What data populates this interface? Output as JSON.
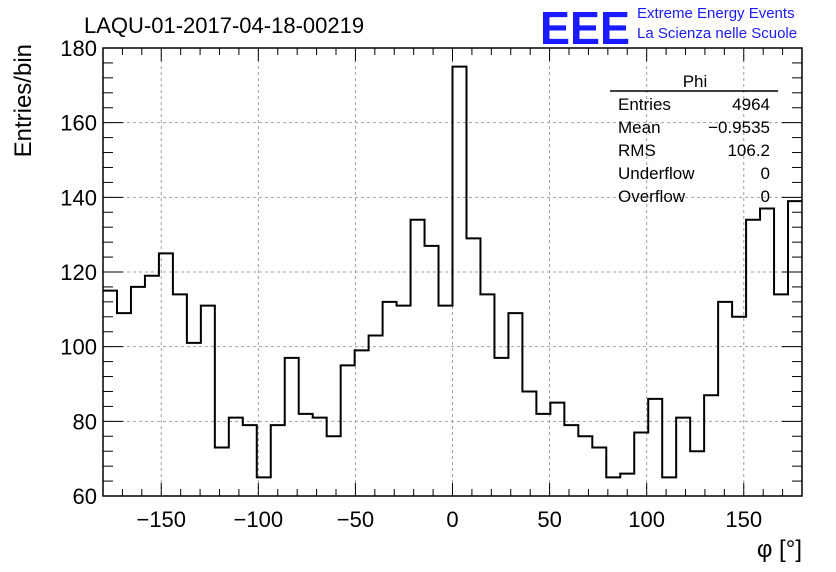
{
  "chart_data": {
    "type": "bar",
    "title": "LAQU-01-2017-04-18-00219",
    "xlabel": "φ [°]",
    "ylabel": "Entries/bin",
    "xlim": [
      -180,
      180
    ],
    "ylim": [
      60,
      180
    ],
    "bin_width": 7.2,
    "grid": true,
    "xticks": [
      -150,
      -100,
      -50,
      0,
      50,
      100,
      150
    ],
    "yticks": [
      60,
      80,
      100,
      120,
      140,
      160,
      180
    ],
    "values": [
      115,
      109,
      116,
      119,
      125,
      114,
      101,
      111,
      73,
      81,
      79,
      65,
      79,
      97,
      82,
      81,
      76,
      95,
      99,
      103,
      112,
      111,
      134,
      127,
      111,
      175,
      129,
      114,
      97,
      109,
      88,
      82,
      85,
      79,
      76,
      73,
      65,
      66,
      77,
      86,
      65,
      81,
      72,
      87,
      112,
      108,
      134,
      137,
      114,
      139
    ],
    "stats_box": {
      "name": "Phi",
      "rows": [
        {
          "label": "Entries",
          "value": "4964"
        },
        {
          "label": "Mean",
          "value": "−0.9535"
        },
        {
          "label": "RMS",
          "value": "106.2"
        },
        {
          "label": "Underflow",
          "value": "0"
        },
        {
          "label": "Overflow",
          "value": "0"
        }
      ]
    }
  },
  "logo": {
    "mark": "EEE",
    "line1": "Extreme Energy Events",
    "line2": "La Scienza nelle Scuole",
    "color": "#1a1aff"
  }
}
